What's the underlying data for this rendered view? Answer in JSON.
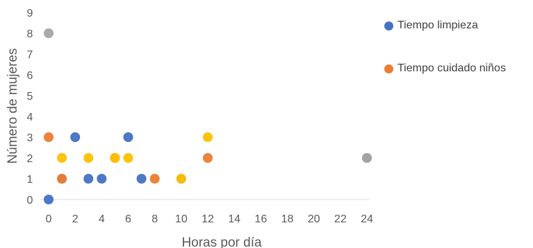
{
  "chart_data": {
    "type": "scatter",
    "xlabel": "Horas por día",
    "ylabel": "Número de mujeres",
    "xlim": [
      0,
      24
    ],
    "ylim": [
      0,
      9
    ],
    "xticks": [
      "0",
      "2",
      "4",
      "6",
      "8",
      "10",
      "12",
      "14",
      "16",
      "18",
      "20",
      "22",
      "24"
    ],
    "yticks": [
      "0",
      "1",
      "2",
      "3",
      "4",
      "5",
      "6",
      "7",
      "8",
      "9"
    ],
    "grid": "horizontal",
    "legend_position": "right",
    "series": [
      {
        "name": "Tiempo limpieza",
        "color": "#4472C4",
        "in_legend": true,
        "points": [
          [
            0,
            0
          ],
          [
            1,
            1
          ],
          [
            2,
            3
          ],
          [
            3,
            1
          ],
          [
            4,
            1
          ],
          [
            5,
            2
          ],
          [
            6,
            3
          ],
          [
            7,
            1
          ],
          [
            10,
            1
          ],
          [
            24,
            2
          ]
        ]
      },
      {
        "name": "Tiempo cuidado niños",
        "color": "#ED7D31",
        "in_legend": true,
        "points": [
          [
            0,
            3
          ],
          [
            1,
            1
          ],
          [
            5,
            2
          ],
          [
            8,
            1
          ],
          [
            12,
            2
          ]
        ]
      },
      {
        "color": "#A5A5A5",
        "in_legend": false,
        "points": [
          [
            0,
            8
          ],
          [
            24,
            2
          ]
        ]
      },
      {
        "color": "#FFC000",
        "in_legend": false,
        "points": [
          [
            1,
            2
          ],
          [
            3,
            2
          ],
          [
            5,
            2
          ],
          [
            6,
            2
          ],
          [
            10,
            1
          ],
          [
            12,
            3
          ]
        ]
      }
    ]
  }
}
